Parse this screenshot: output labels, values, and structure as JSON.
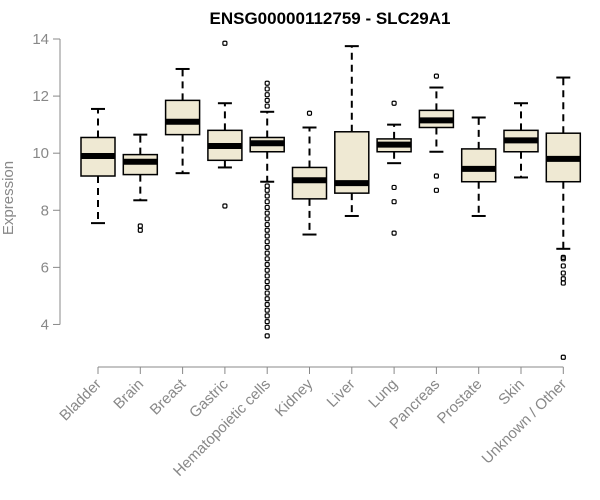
{
  "chart_data": {
    "type": "boxplot",
    "title": "ENSG00000112759 - SLC29A1",
    "xlabel": "",
    "ylabel": "Expression",
    "ylim": [
      3,
      14
    ],
    "yticks": [
      4,
      6,
      8,
      10,
      12,
      14
    ],
    "box_color": "#efe9d3",
    "line_color": "#000000",
    "axis_color": "#888888",
    "categories": [
      "Bladder",
      "Brain",
      "Breast",
      "Gastric",
      "Hematopoietic cells",
      "Kidney",
      "Liver",
      "Lung",
      "Pancreas",
      "Prostate",
      "Skin",
      "Unknown / Other"
    ],
    "boxes": [
      {
        "name": "Bladder",
        "whisker_low": 7.55,
        "q1": 9.2,
        "median": 9.9,
        "q3": 10.55,
        "whisker_high": 11.55,
        "outliers": []
      },
      {
        "name": "Brain",
        "whisker_low": 8.35,
        "q1": 9.25,
        "median": 9.7,
        "q3": 9.95,
        "whisker_high": 10.65,
        "outliers": [
          7.3,
          7.45
        ]
      },
      {
        "name": "Breast",
        "whisker_low": 9.3,
        "q1": 10.65,
        "median": 11.1,
        "q3": 11.85,
        "whisker_high": 12.95,
        "outliers": []
      },
      {
        "name": "Gastric",
        "whisker_low": 9.5,
        "q1": 9.75,
        "median": 10.25,
        "q3": 10.8,
        "whisker_high": 11.75,
        "outliers": [
          8.15,
          13.85
        ]
      },
      {
        "name": "Hematopoietic cells",
        "whisker_low": 9.0,
        "q1": 10.05,
        "median": 10.35,
        "q3": 10.55,
        "whisker_high": 11.45,
        "outliers": [
          3.6,
          3.9,
          4.1,
          4.3,
          4.5,
          4.7,
          4.9,
          5.1,
          5.3,
          5.5,
          5.7,
          5.9,
          6.1,
          6.3,
          6.5,
          6.7,
          6.9,
          7.1,
          7.3,
          7.5,
          7.7,
          7.9,
          8.1,
          8.3,
          8.5,
          8.7,
          8.85,
          11.65,
          11.85,
          12.05,
          12.25,
          12.45
        ]
      },
      {
        "name": "Kidney",
        "whisker_low": 7.15,
        "q1": 8.4,
        "median": 9.05,
        "q3": 9.5,
        "whisker_high": 10.9,
        "outliers": [
          11.4
        ]
      },
      {
        "name": "Liver",
        "whisker_low": 7.8,
        "q1": 8.6,
        "median": 8.95,
        "q3": 10.75,
        "whisker_high": 13.75,
        "outliers": []
      },
      {
        "name": "Lung",
        "whisker_low": 9.65,
        "q1": 10.05,
        "median": 10.3,
        "q3": 10.5,
        "whisker_high": 11.0,
        "outliers": [
          7.2,
          8.3,
          8.8,
          11.75
        ]
      },
      {
        "name": "Pancreas",
        "whisker_low": 10.05,
        "q1": 10.9,
        "median": 11.15,
        "q3": 11.5,
        "whisker_high": 12.3,
        "outliers": [
          8.7,
          9.2,
          12.7
        ]
      },
      {
        "name": "Prostate",
        "whisker_low": 7.8,
        "q1": 9.0,
        "median": 9.45,
        "q3": 10.15,
        "whisker_high": 11.25,
        "outliers": []
      },
      {
        "name": "Skin",
        "whisker_low": 9.15,
        "q1": 10.05,
        "median": 10.45,
        "q3": 10.8,
        "whisker_high": 11.75,
        "outliers": []
      },
      {
        "name": "Unknown / Other",
        "whisker_low": 6.65,
        "q1": 9.0,
        "median": 9.8,
        "q3": 10.7,
        "whisker_high": 12.65,
        "outliers": [
          2.85,
          5.45,
          5.6,
          5.8,
          6.05,
          6.3,
          6.35
        ]
      }
    ]
  }
}
